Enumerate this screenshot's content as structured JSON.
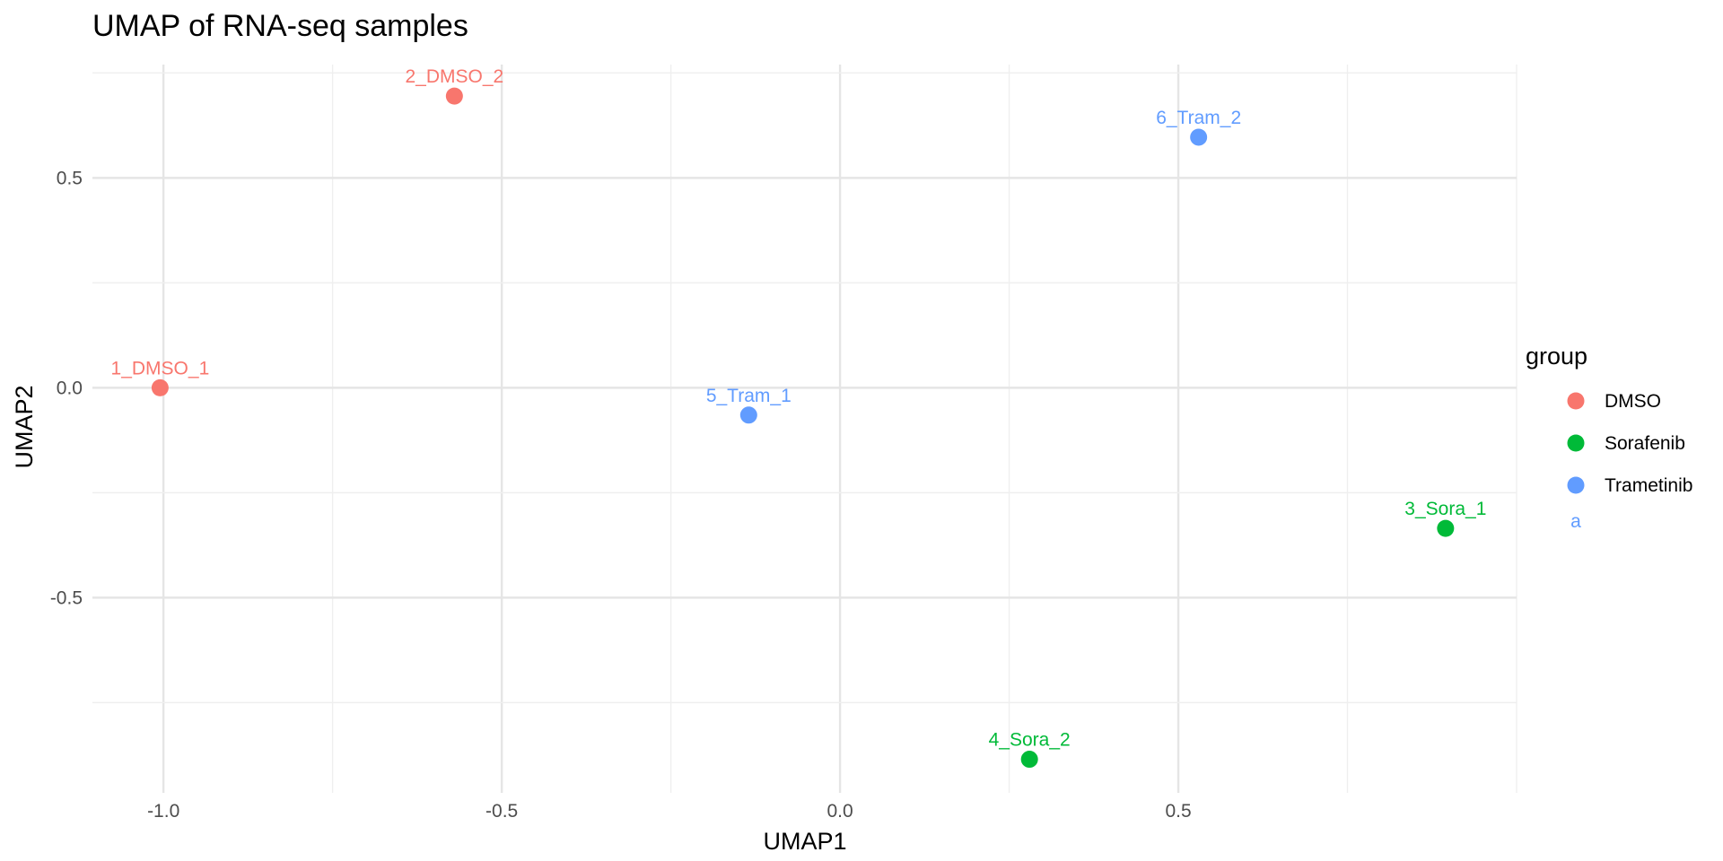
{
  "chart_data": {
    "type": "scatter",
    "title": "UMAP of RNA-seq samples",
    "xlabel": "UMAP1",
    "ylabel": "UMAP2",
    "xlim": [
      -1.105,
      1.0
    ],
    "ylim": [
      -0.965,
      0.77
    ],
    "x_ticks": [
      -1.0,
      -0.5,
      0.0,
      0.5
    ],
    "x_tick_labels": [
      "-1.0",
      "-0.5",
      "0.0",
      "0.5"
    ],
    "y_ticks": [
      -0.5,
      0.0,
      0.5
    ],
    "y_tick_labels": [
      "-0.5",
      "0.0",
      "0.5"
    ],
    "grid": true,
    "legend": {
      "title": "group",
      "position": "right",
      "entries": [
        {
          "name": "DMSO",
          "color": "#F8766D"
        },
        {
          "name": "Sorafenib",
          "color": "#00BA38"
        },
        {
          "name": "Trametinib",
          "color": "#619CFF"
        }
      ],
      "stray_key_text": "a"
    },
    "points": [
      {
        "label": "1_DMSO_1",
        "x": -1.005,
        "y": 0.0,
        "group": "DMSO"
      },
      {
        "label": "2_DMSO_2",
        "x": -0.57,
        "y": 0.695,
        "group": "DMSO"
      },
      {
        "label": "3_Sora_1",
        "x": 0.895,
        "y": -0.335,
        "group": "Sorafenib"
      },
      {
        "label": "4_Sora_2",
        "x": 0.28,
        "y": -0.885,
        "group": "Sorafenib"
      },
      {
        "label": "5_Tram_1",
        "x": -0.135,
        "y": -0.065,
        "group": "Trametinib"
      },
      {
        "label": "6_Tram_2",
        "x": 0.53,
        "y": 0.597,
        "group": "Trametinib"
      }
    ]
  }
}
